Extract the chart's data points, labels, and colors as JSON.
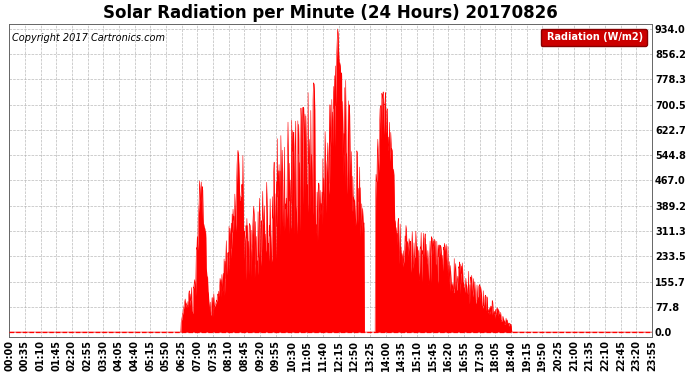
{
  "title": "Solar Radiation per Minute (24 Hours) 20170826",
  "copyright": "Copyright 2017 Cartronics.com",
  "legend_label": "Radiation (W/m2)",
  "yticks": [
    0.0,
    77.8,
    155.7,
    233.5,
    311.3,
    389.2,
    467.0,
    544.8,
    622.7,
    700.5,
    778.3,
    856.2,
    934.0
  ],
  "ymax": 934.0,
  "ymin": 0.0,
  "fill_color": "#ff0000",
  "line_color": "#ff0000",
  "grid_color": "#aaaaaa",
  "background_color": "#ffffff",
  "title_fontsize": 12,
  "copyright_fontsize": 7,
  "tick_fontsize": 7,
  "legend_bg": "#cc0000",
  "legend_text_color": "#ffffff",
  "xtick_labels": [
    "00:00",
    "00:35",
    "01:10",
    "01:45",
    "02:20",
    "02:55",
    "03:30",
    "04:05",
    "04:40",
    "05:15",
    "05:50",
    "06:25",
    "07:00",
    "07:35",
    "08:10",
    "08:45",
    "09:20",
    "09:55",
    "10:30",
    "11:05",
    "11:40",
    "12:15",
    "12:50",
    "13:25",
    "14:00",
    "14:35",
    "15:10",
    "15:45",
    "16:20",
    "16:55",
    "17:30",
    "18:05",
    "18:40",
    "19:15",
    "19:50",
    "20:25",
    "21:00",
    "21:35",
    "22:10",
    "22:45",
    "23:20",
    "23:55"
  ]
}
